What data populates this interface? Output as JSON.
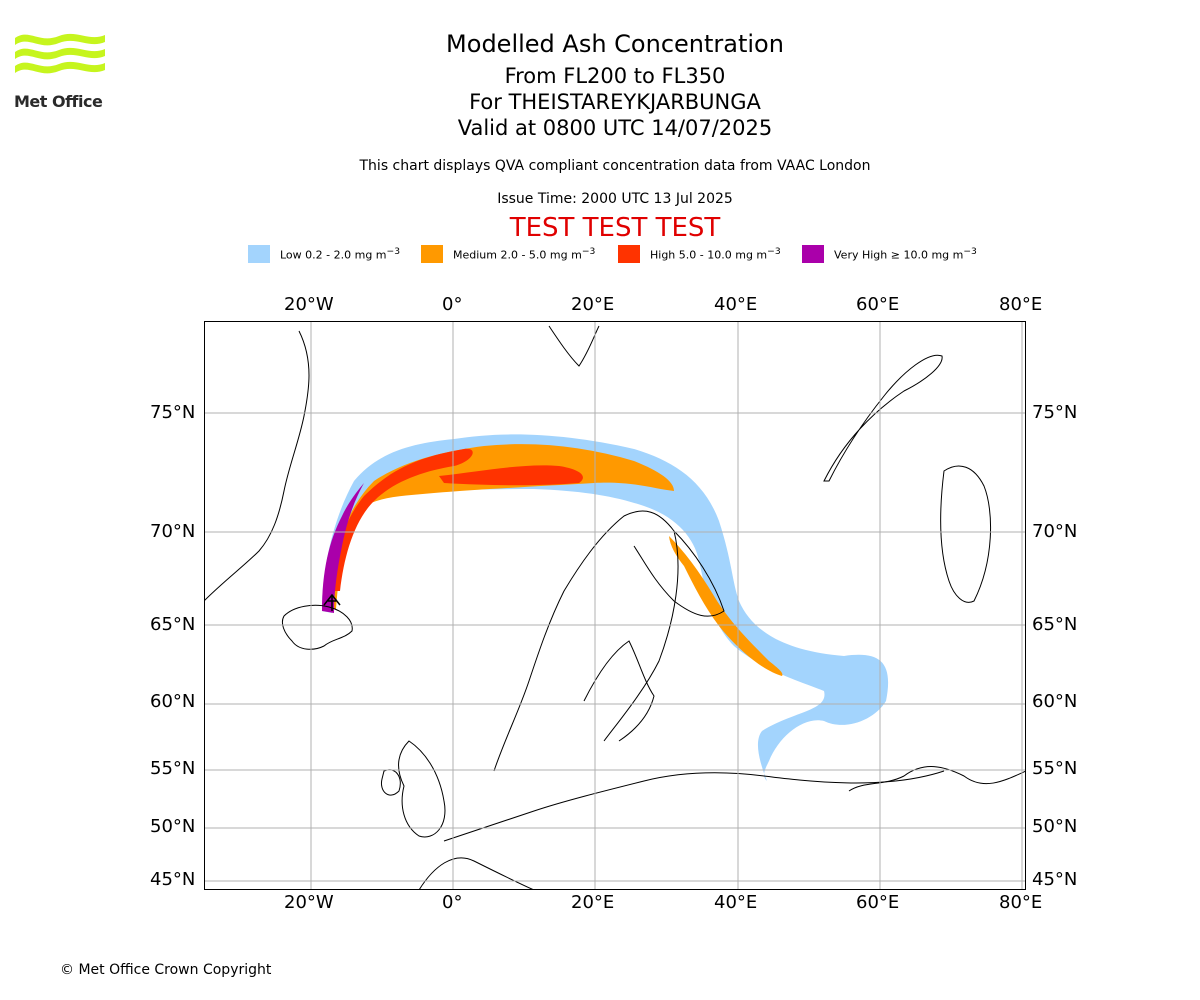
{
  "logo": {
    "text": "Met Office",
    "colors": {
      "waves": "#c6f51e",
      "text": "#2a2a2a"
    }
  },
  "header": {
    "title": "Modelled Ash Concentration",
    "levels": "From FL200 to FL350",
    "volcano": "For THEISTAREYKJARBUNGA",
    "valid": "Valid at 0800 UTC 14/07/2025",
    "note": "This chart displays QVA compliant concentration data from VAAC London",
    "issue": "Issue Time: 2000 UTC 13 Jul 2025",
    "test": "TEST TEST TEST"
  },
  "legend": [
    {
      "label": "Low 0.2 - 2.0 mg m",
      "color": "#a3d4fd"
    },
    {
      "label": "Medium 2.0 - 5.0 mg m",
      "color": "#ff9900"
    },
    {
      "label": "High 5.0 - 10.0 mg m",
      "color": "#ff3300"
    },
    {
      "label": "Very High ≥ 10.0 mg m",
      "color": "#aa00aa"
    }
  ],
  "legend_unit_exp": "−3",
  "map": {
    "lon_labels": [
      "20°W",
      "0°",
      "20°E",
      "40°E",
      "60°E",
      "80°E"
    ],
    "lat_labels": [
      "75°N",
      "70°N",
      "65°N",
      "60°N",
      "55°N",
      "50°N",
      "45°N"
    ],
    "colors": {
      "grid": "#b0b0b0",
      "coast": "#000000"
    }
  },
  "footer": {
    "copyright": "© Met Office Crown Copyright"
  }
}
